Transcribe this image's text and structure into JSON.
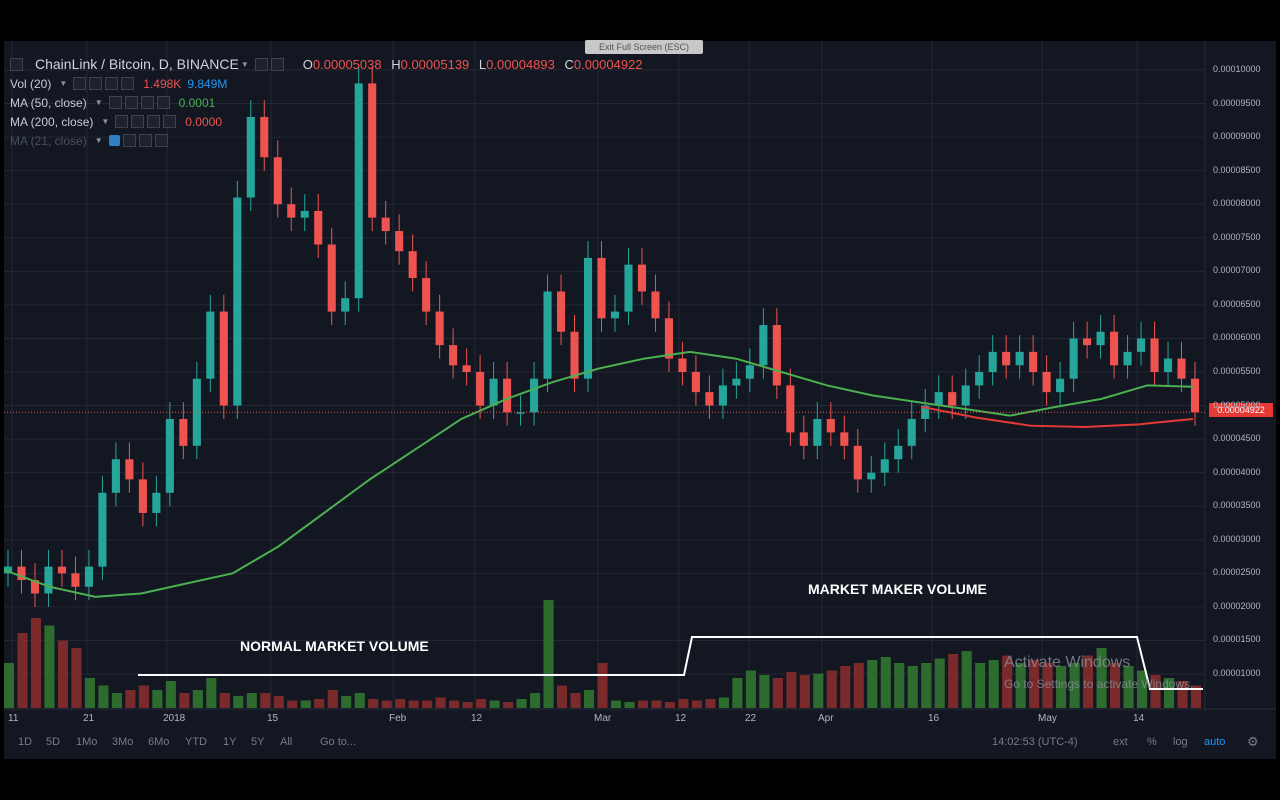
{
  "toolbar": {
    "exit_fullscreen": "Exit Full Screen (ESC)",
    "symbol": "ChainLink / Bitcoin, D, BINANCE",
    "ohlc": {
      "o_label": "O",
      "o": "0.00005038",
      "h_label": "H",
      "h": "0.00005139",
      "l_label": "L",
      "l": "0.00004893",
      "c_label": "C",
      "c": "0.00004922"
    }
  },
  "indicators": [
    {
      "name": "Vol (20)",
      "v1": "1.498K",
      "v2": "9.849M",
      "c1": "#ef5350",
      "c2": "#2196f3"
    },
    {
      "name": "MA (50, close)",
      "v1": "0.0001",
      "c1": "#4caf50"
    },
    {
      "name": "MA (200, close)",
      "v1": "0.0000",
      "c1": "#ef5350"
    },
    {
      "name": "MA (21, close)"
    }
  ],
  "annotations": {
    "normal": "NORMAL MARKET VOLUME",
    "market_maker": "MARKET MAKER VOLUME",
    "watermark_title": "Activate Windows",
    "watermark_sub": "Go to Settings to activate Windows."
  },
  "price_tag": "0.00004922",
  "bottom": {
    "ranges": [
      "1D",
      "5D",
      "1Mo",
      "3Mo",
      "6Mo",
      "YTD",
      "1Y",
      "5Y",
      "All"
    ],
    "goto": "Go to...",
    "time": "14:02:53 (UTC-4)",
    "ext": "ext",
    "pct": "%",
    "log": "log",
    "auto": "auto"
  },
  "colors": {
    "bg": "#131722",
    "up": "#26a69a",
    "down": "#ef5350",
    "ma50": "#4caf50",
    "ma200": "#e53935",
    "grid": "#232736"
  },
  "chart_data": {
    "type": "candlestick",
    "title": "ChainLink / Bitcoin, D, BINANCE",
    "y_ticks": [
      "0.00010000",
      "0.00009500",
      "0.00009000",
      "0.00008500",
      "0.00008000",
      "0.00007500",
      "0.00007000",
      "0.00006500",
      "0.00006000",
      "0.00005500",
      "0.00005000",
      "0.00004500",
      "0.00004000",
      "0.00003500",
      "0.00003000",
      "0.00002500",
      "0.00002000",
      "0.00001500",
      "0.00001000"
    ],
    "ylim": [
      1e-05,
      0.0001
    ],
    "x_labels": [
      "11",
      "21",
      "2018",
      "15",
      "Feb",
      "12",
      "Mar",
      "12",
      "22",
      "Apr",
      "16",
      "May",
      "14"
    ],
    "close": [
      2.6,
      2.4,
      2.2,
      2.6,
      2.5,
      2.3,
      2.6,
      3.7,
      4.2,
      3.9,
      3.4,
      3.7,
      4.8,
      4.4,
      5.4,
      6.4,
      5.0,
      8.1,
      9.3,
      8.7,
      8.0,
      7.8,
      7.9,
      7.4,
      6.4,
      6.6,
      9.8,
      7.8,
      7.6,
      7.3,
      6.9,
      6.4,
      5.9,
      5.6,
      5.5,
      5.0,
      5.4,
      4.9,
      4.9,
      5.4,
      6.7,
      6.1,
      5.4,
      7.2,
      6.3,
      6.4,
      7.1,
      6.7,
      6.3,
      5.7,
      5.5,
      5.2,
      5.0,
      5.3,
      5.4,
      5.6,
      6.2,
      5.3,
      4.6,
      4.4,
      4.8,
      4.6,
      4.4,
      3.9,
      4.0,
      4.2,
      4.4,
      4.8,
      5.0,
      5.2,
      5.0,
      5.3,
      5.5,
      5.8,
      5.6,
      5.8,
      5.5,
      5.2,
      5.4,
      6.0,
      5.9,
      6.1,
      5.6,
      5.8,
      6.0,
      5.5,
      5.7,
      5.4,
      4.9
    ],
    "ma50": [
      2.55,
      2.3,
      2.15,
      2.2,
      2.35,
      2.5,
      2.9,
      3.4,
      3.9,
      4.35,
      4.8,
      5.1,
      5.35,
      5.55,
      5.7,
      5.8,
      5.7,
      5.5,
      5.3,
      5.15,
      5.05,
      4.95,
      4.85,
      4.98,
      5.1,
      5.3,
      5.28
    ],
    "ma200": [
      4.98,
      4.82,
      4.7,
      4.68,
      4.72,
      4.8
    ],
    "volume_scale": "normalized 0-1 (no volume axis shown)",
    "volume": [
      0.3,
      0.5,
      0.6,
      0.55,
      0.45,
      0.4,
      0.2,
      0.15,
      0.1,
      0.12,
      0.15,
      0.12,
      0.18,
      0.1,
      0.12,
      0.2,
      0.1,
      0.08,
      0.1,
      0.1,
      0.08,
      0.05,
      0.05,
      0.06,
      0.12,
      0.08,
      0.1,
      0.06,
      0.05,
      0.06,
      0.05,
      0.05,
      0.07,
      0.05,
      0.04,
      0.06,
      0.05,
      0.04,
      0.06,
      0.1,
      0.72,
      0.15,
      0.1,
      0.12,
      0.3,
      0.05,
      0.04,
      0.05,
      0.05,
      0.04,
      0.06,
      0.05,
      0.06,
      0.07,
      0.2,
      0.25,
      0.22,
      0.2,
      0.24,
      0.22,
      0.23,
      0.25,
      0.28,
      0.3,
      0.32,
      0.34,
      0.3,
      0.28,
      0.3,
      0.33,
      0.36,
      0.38,
      0.3,
      0.32,
      0.35,
      0.3,
      0.32,
      0.3,
      0.28,
      0.3,
      0.35,
      0.4,
      0.3,
      0.28,
      0.25,
      0.22,
      0.2,
      0.18,
      0.15
    ]
  }
}
